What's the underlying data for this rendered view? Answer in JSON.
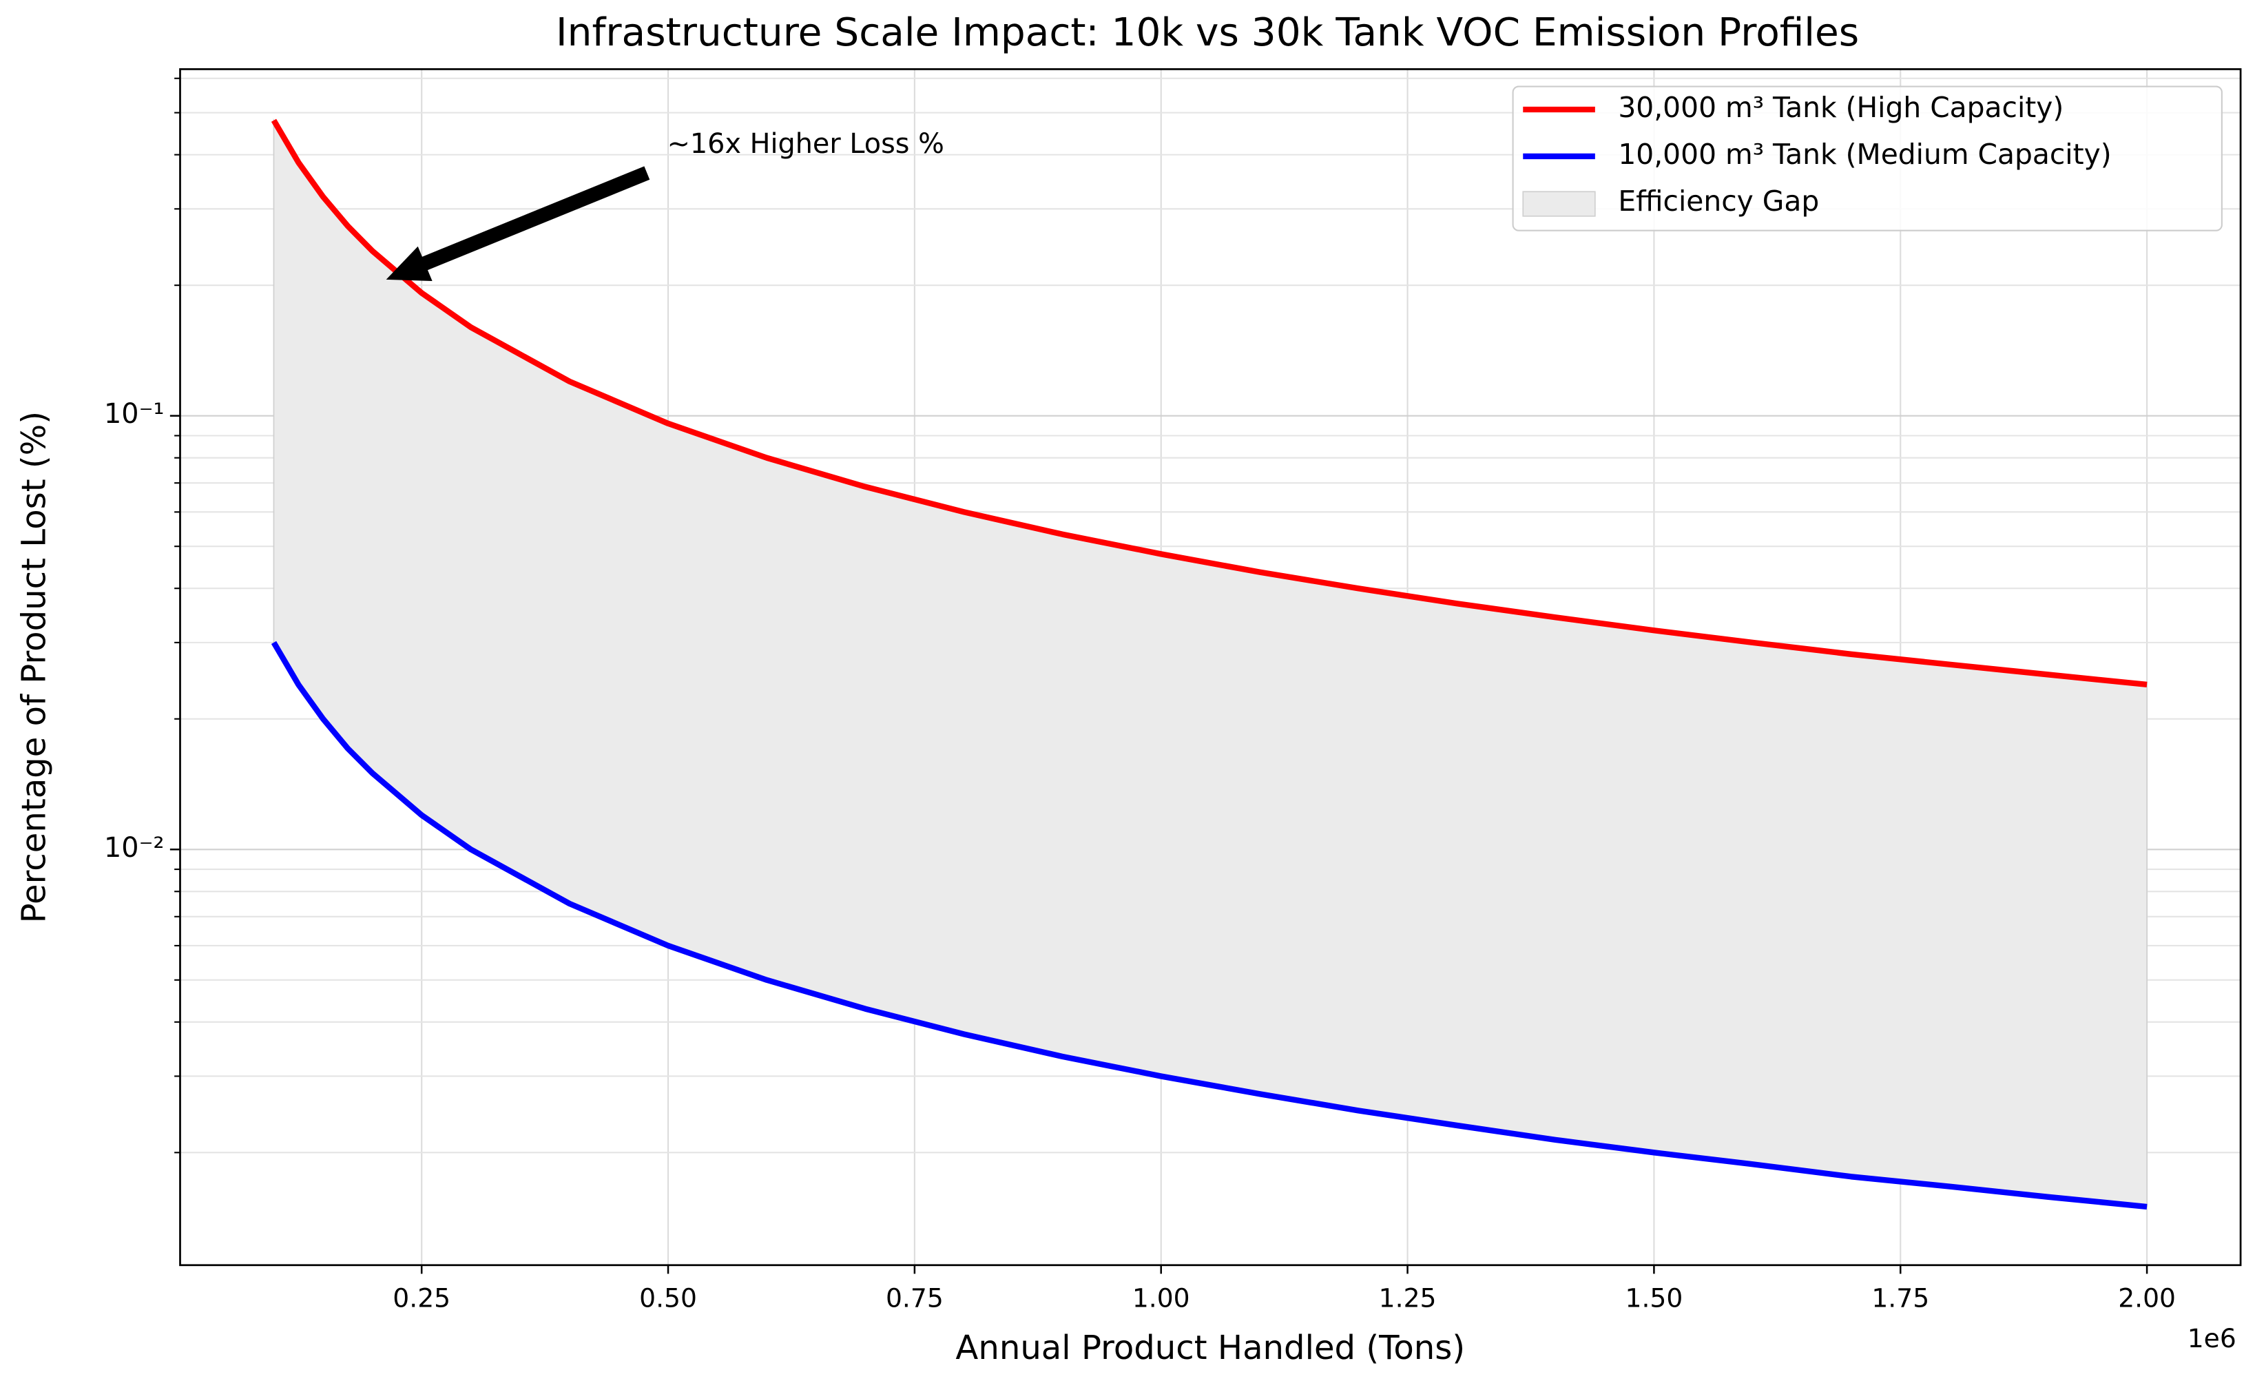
{
  "chart_data": {
    "type": "line",
    "title": "Infrastructure Scale Impact: 10k vs 30k Tank VOC Emission Profiles",
    "x_label": "Annual Product Handled (Tons)",
    "y_label": "Percentage of Product Lost (%)",
    "x_offset_label": "1e6",
    "x": [
      100000,
      125000,
      150000,
      175000,
      200000,
      250000,
      300000,
      400000,
      500000,
      600000,
      700000,
      800000,
      900000,
      1000000,
      1100000,
      1200000,
      1300000,
      1400000,
      1500000,
      1600000,
      1700000,
      1800000,
      1900000,
      2000000
    ],
    "series": [
      {
        "name": "30,000 m³ Tank (High Capacity)",
        "color": "#ff0000",
        "values": [
          0.48,
          0.384,
          0.32,
          0.274,
          0.24,
          0.192,
          0.16,
          0.12,
          0.096,
          0.08,
          0.0686,
          0.06,
          0.0533,
          0.048,
          0.0436,
          0.04,
          0.0369,
          0.0343,
          0.032,
          0.03,
          0.0282,
          0.0267,
          0.0253,
          0.024
        ]
      },
      {
        "name": "10,000 m³ Tank (Medium Capacity)",
        "color": "#0000ff",
        "values": [
          0.03,
          0.024,
          0.02,
          0.0171,
          0.015,
          0.012,
          0.01,
          0.0075,
          0.006,
          0.005,
          0.00429,
          0.00375,
          0.00333,
          0.003,
          0.00273,
          0.0025,
          0.00231,
          0.00214,
          0.002,
          0.00188,
          0.00176,
          0.00167,
          0.00158,
          0.0015
        ]
      }
    ],
    "fill_between": {
      "name": "Efficiency Gap",
      "color": "#ebebeb"
    },
    "annotation": "~16x Higher Loss %",
    "xlim": [
      5000,
      2095000
    ],
    "ylim": [
      0.0011,
      0.63
    ],
    "y_log": true,
    "grid": true,
    "legend": "upper right",
    "xticks": [
      {
        "value": 250000,
        "label": "0.25"
      },
      {
        "value": 500000,
        "label": "0.50"
      },
      {
        "value": 750000,
        "label": "0.75"
      },
      {
        "value": 1000000,
        "label": "1.00"
      },
      {
        "value": 1250000,
        "label": "1.25"
      },
      {
        "value": 1500000,
        "label": "1.50"
      },
      {
        "value": 1750000,
        "label": "1.75"
      },
      {
        "value": 2000000,
        "label": "2.00"
      }
    ],
    "yticks": [
      {
        "value": 0.01,
        "label": "10⁻²"
      },
      {
        "value": 0.1,
        "label": "10⁻¹"
      }
    ],
    "yminorticks": [
      0.002,
      0.003,
      0.004,
      0.005,
      0.006,
      0.007,
      0.008,
      0.009,
      0.02,
      0.03,
      0.04,
      0.05,
      0.06,
      0.07,
      0.08,
      0.09,
      0.2,
      0.3,
      0.4,
      0.5,
      0.6
    ]
  }
}
